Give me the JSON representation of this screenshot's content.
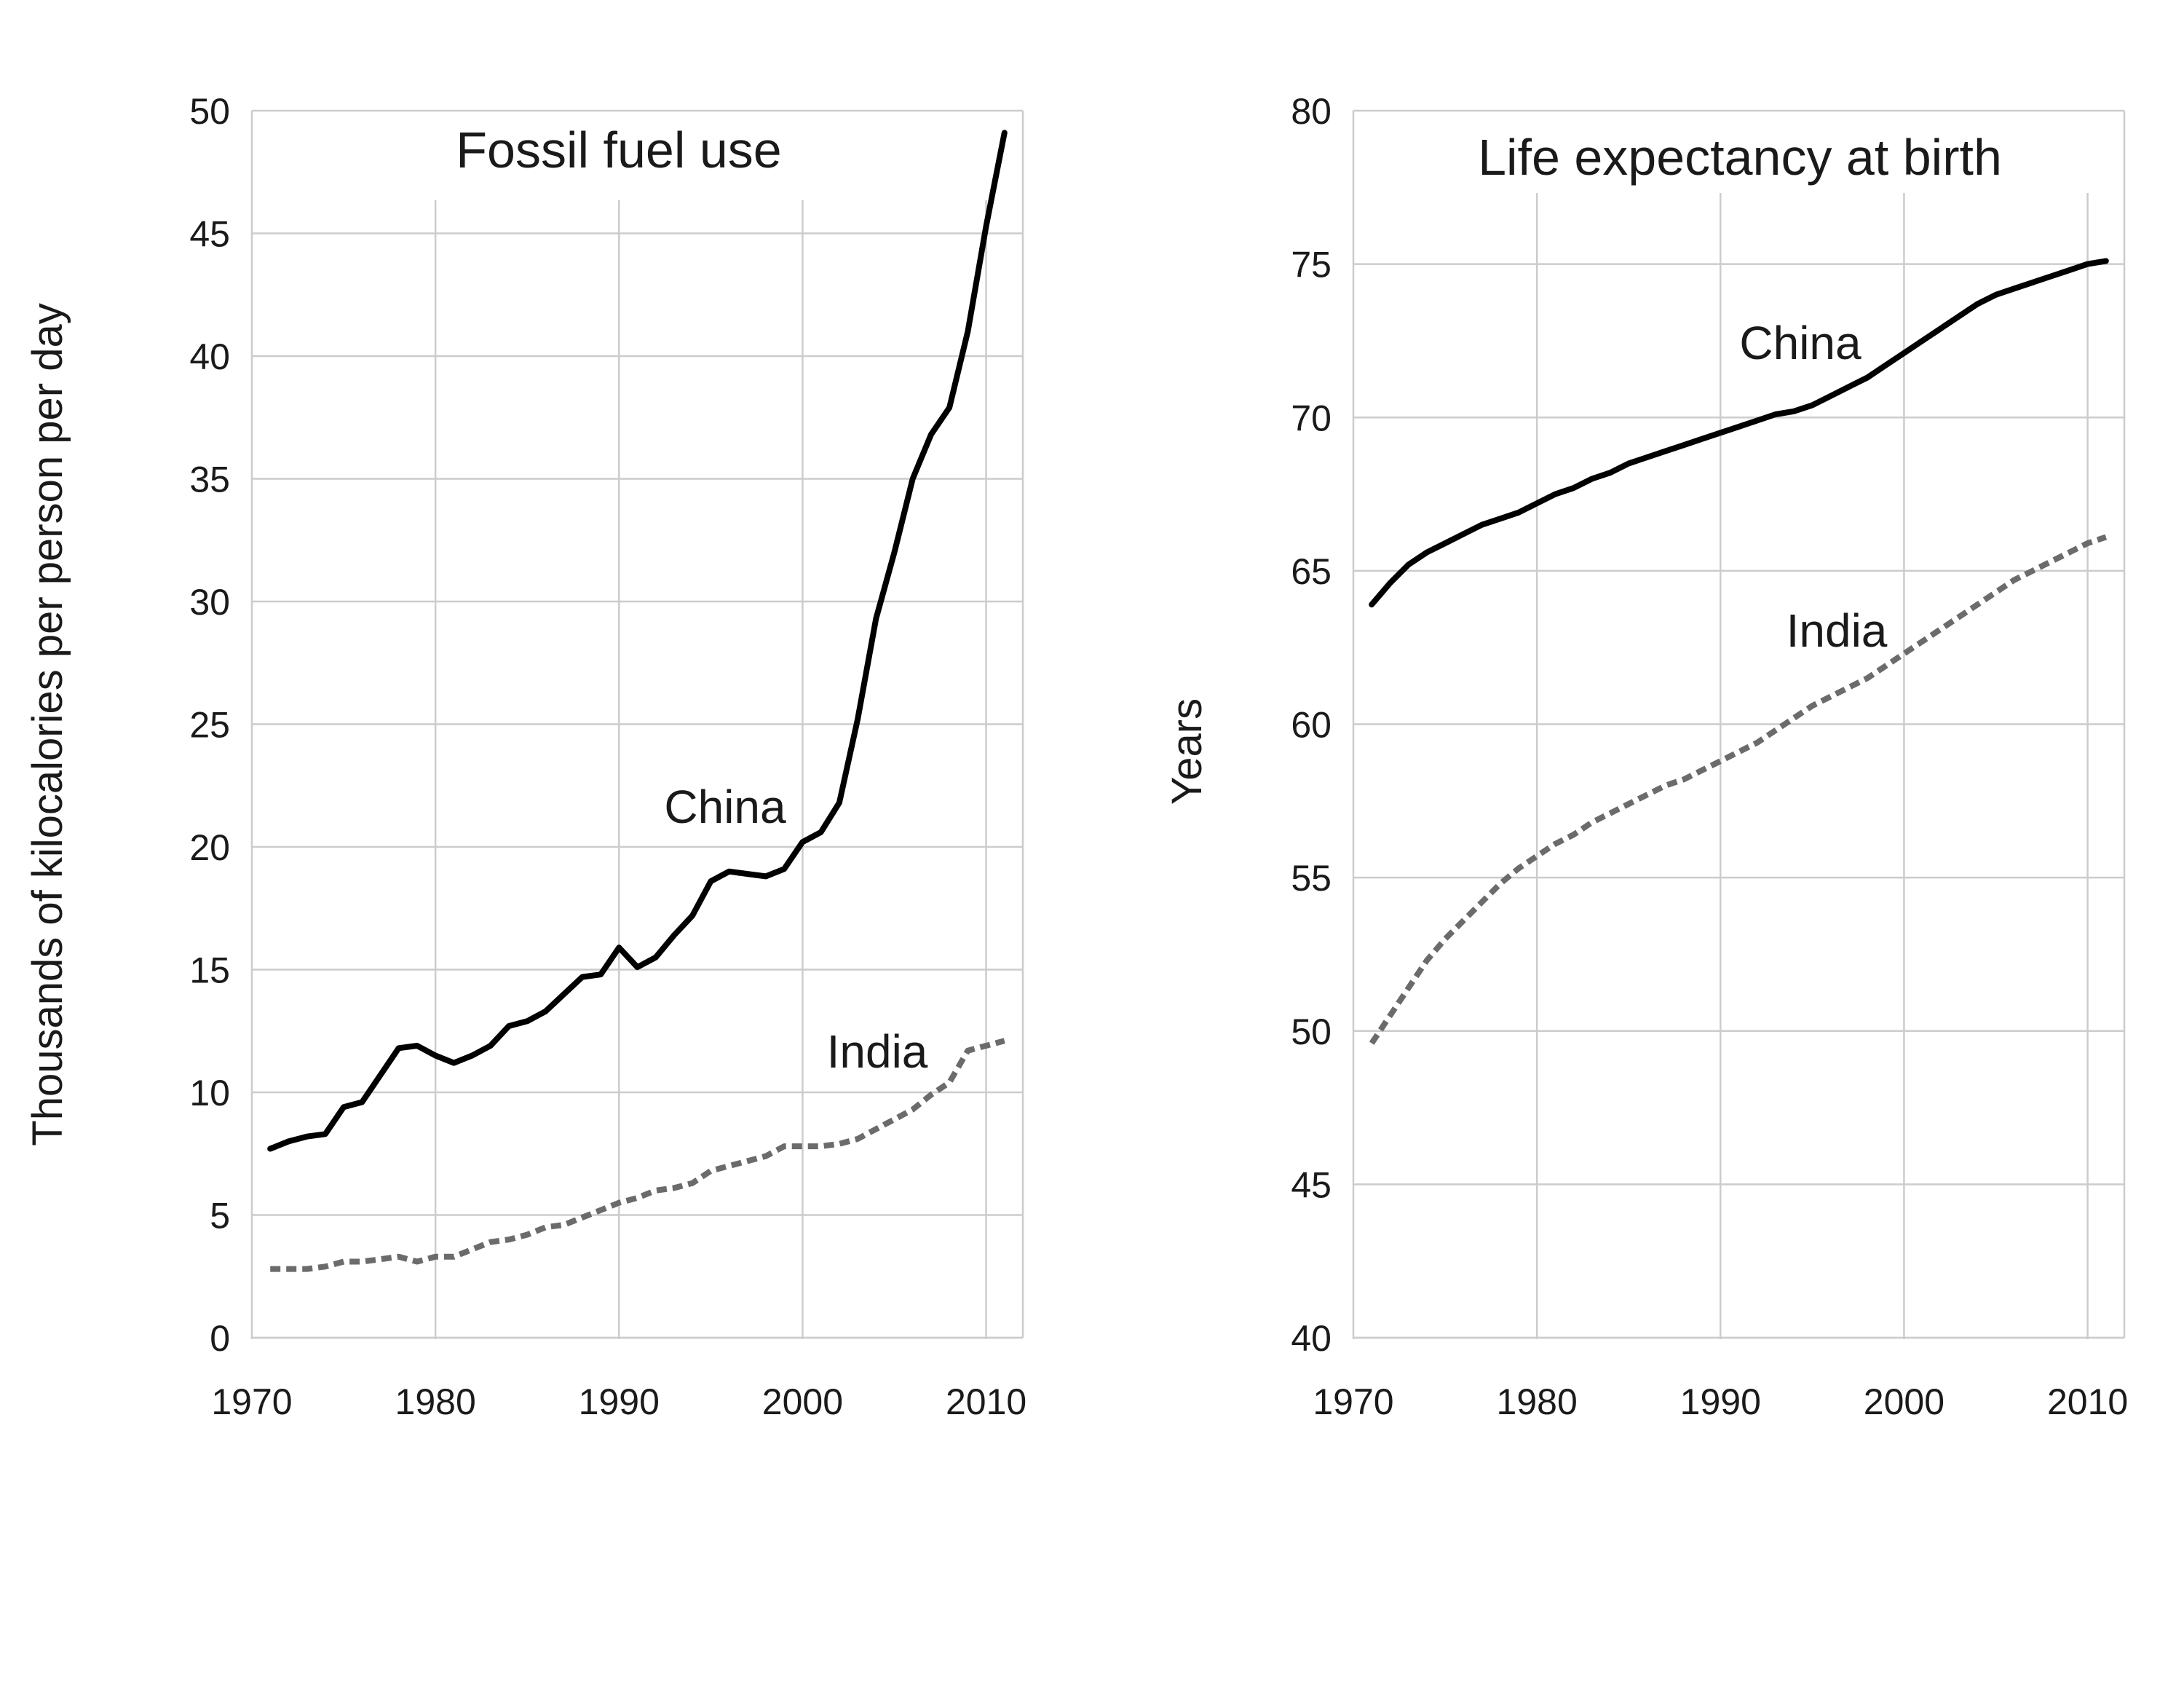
{
  "chart_data": [
    {
      "type": "line",
      "title": "Fossil fuel use",
      "xlabel": "",
      "ylabel": "Thousands of kilocalories per person per day",
      "xlim": [
        1970,
        2012
      ],
      "ylim": [
        0,
        50
      ],
      "xticks": [
        "1970",
        "1980",
        "1990",
        "2000",
        "2010"
      ],
      "yticks": [
        "0",
        "5",
        "10",
        "15",
        "20",
        "25",
        "30",
        "35",
        "40",
        "45",
        "50"
      ],
      "grid": true,
      "x": [
        1971,
        1972,
        1973,
        1974,
        1975,
        1976,
        1977,
        1978,
        1979,
        1980,
        1981,
        1982,
        1983,
        1984,
        1985,
        1986,
        1987,
        1988,
        1989,
        1990,
        1991,
        1992,
        1993,
        1994,
        1995,
        1996,
        1997,
        1998,
        1999,
        2000,
        2001,
        2002,
        2003,
        2004,
        2005,
        2006,
        2007,
        2008,
        2009,
        2010,
        2011
      ],
      "series": [
        {
          "name": "China",
          "style": "solid",
          "color": "#000000",
          "values": [
            7.7,
            8.0,
            8.2,
            8.3,
            9.4,
            9.6,
            10.7,
            11.8,
            11.9,
            11.5,
            11.2,
            11.5,
            11.9,
            12.7,
            12.9,
            13.3,
            14.0,
            14.7,
            14.8,
            15.9,
            15.1,
            15.5,
            16.4,
            17.2,
            18.6,
            19.0,
            18.9,
            18.8,
            19.1,
            20.2,
            20.6,
            21.8,
            25.2,
            29.3,
            32.0,
            35.0,
            36.8,
            37.9,
            41.0,
            45.3,
            49.1
          ]
        },
        {
          "name": "India",
          "style": "dashed",
          "color": "#6b6b6b",
          "values": [
            2.8,
            2.8,
            2.8,
            2.9,
            3.1,
            3.1,
            3.2,
            3.3,
            3.1,
            3.3,
            3.3,
            3.6,
            3.9,
            4.0,
            4.2,
            4.5,
            4.6,
            4.9,
            5.2,
            5.5,
            5.7,
            6.0,
            6.1,
            6.3,
            6.8,
            7.0,
            7.2,
            7.4,
            7.8,
            7.8,
            7.8,
            7.9,
            8.1,
            8.5,
            8.9,
            9.3,
            9.9,
            10.4,
            11.7,
            11.9,
            12.1
          ]
        }
      ]
    },
    {
      "type": "line",
      "title": "Life expectancy at birth",
      "xlabel": "",
      "ylabel": "Years",
      "xlim": [
        1970,
        2012
      ],
      "ylim": [
        40,
        80
      ],
      "xticks": [
        "1970",
        "1980",
        "1990",
        "2000",
        "2010"
      ],
      "yticks": [
        "40",
        "45",
        "50",
        "55",
        "60",
        "65",
        "70",
        "75",
        "80"
      ],
      "grid": true,
      "x": [
        1971,
        1972,
        1973,
        1974,
        1975,
        1976,
        1977,
        1978,
        1979,
        1980,
        1981,
        1982,
        1983,
        1984,
        1985,
        1986,
        1987,
        1988,
        1989,
        1990,
        1991,
        1992,
        1993,
        1994,
        1995,
        1996,
        1997,
        1998,
        1999,
        2000,
        2001,
        2002,
        2003,
        2004,
        2005,
        2006,
        2007,
        2008,
        2009,
        2010,
        2011
      ],
      "series": [
        {
          "name": "China",
          "style": "solid",
          "color": "#000000",
          "values": [
            63.9,
            64.6,
            65.2,
            65.6,
            65.9,
            66.2,
            66.5,
            66.7,
            66.9,
            67.2,
            67.5,
            67.7,
            68.0,
            68.2,
            68.5,
            68.7,
            68.9,
            69.1,
            69.3,
            69.5,
            69.7,
            69.9,
            70.1,
            70.2,
            70.4,
            70.7,
            71.0,
            71.3,
            71.7,
            72.1,
            72.5,
            72.9,
            73.3,
            73.7,
            74.0,
            74.2,
            74.4,
            74.6,
            74.8,
            75.0,
            75.1
          ]
        },
        {
          "name": "India",
          "style": "dashed",
          "color": "#6b6b6b",
          "values": [
            49.6,
            50.5,
            51.4,
            52.3,
            53.0,
            53.6,
            54.2,
            54.8,
            55.3,
            55.7,
            56.1,
            56.4,
            56.8,
            57.1,
            57.4,
            57.7,
            58.0,
            58.2,
            58.5,
            58.8,
            59.1,
            59.4,
            59.8,
            60.2,
            60.6,
            60.9,
            61.2,
            61.5,
            61.9,
            62.3,
            62.7,
            63.1,
            63.5,
            63.9,
            64.3,
            64.7,
            65.0,
            65.3,
            65.6,
            65.9,
            66.1
          ]
        }
      ]
    }
  ]
}
